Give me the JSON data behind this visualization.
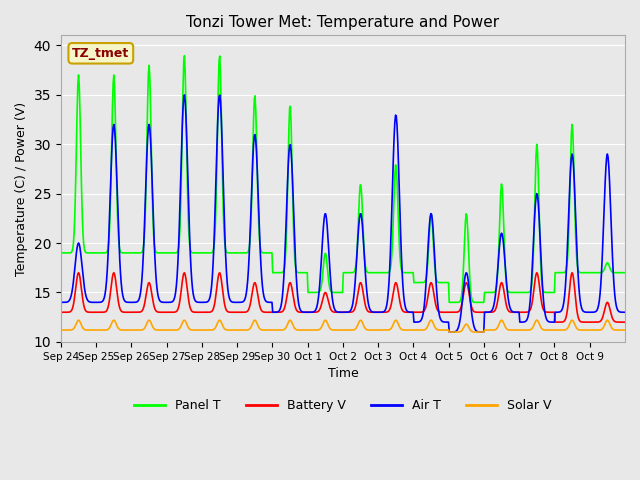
{
  "title": "Tonzi Tower Met: Temperature and Power",
  "xlabel": "Time",
  "ylabel": "Temperature (C) / Power (V)",
  "ylim": [
    10,
    41
  ],
  "yticks": [
    10,
    15,
    20,
    25,
    30,
    35,
    40
  ],
  "background_color": "#e8e8e8",
  "annotation_text": "TZ_tmet",
  "annotation_color": "#8b0000",
  "annotation_bg": "#f5f5c8",
  "annotation_border": "#c8a000",
  "legend_labels": [
    "Panel T",
    "Battery V",
    "Air T",
    "Solar V"
  ],
  "legend_colors": [
    "#00ff00",
    "#ff0000",
    "#0000ff",
    "#ffa500"
  ],
  "x_tick_labels": [
    "Sep 24",
    "Sep 25",
    "Sep 26",
    "Sep 27",
    "Sep 28",
    "Sep 29",
    "Sep 30",
    "Oct 1",
    "Oct 2",
    "Oct 3",
    "Oct 4",
    "Oct 5",
    "Oct 6",
    "Oct 7",
    "Oct 8",
    "Oct 9"
  ],
  "panel_t_peaks_day": [
    37,
    37,
    38,
    39,
    39,
    35,
    34,
    19,
    26,
    28,
    23,
    23,
    26,
    30,
    32,
    18
  ],
  "panel_t_base": [
    19,
    19,
    19,
    19,
    19,
    19,
    17,
    15,
    17,
    17,
    16,
    14,
    15,
    15,
    17,
    17
  ],
  "air_t_peaks_day": [
    20,
    32,
    32,
    35,
    35,
    31,
    30,
    23,
    23,
    33,
    23,
    17,
    21,
    25,
    29,
    29
  ],
  "air_t_base": [
    14,
    14,
    14,
    14,
    14,
    14,
    13,
    13,
    13,
    13,
    12,
    11,
    13,
    12,
    13,
    13
  ],
  "batt_v_peaks": [
    17,
    17,
    16,
    17,
    17,
    16,
    16,
    15,
    16,
    16,
    16,
    16,
    16,
    17,
    17,
    14
  ],
  "batt_v_base": [
    13,
    13,
    13,
    13,
    13,
    13,
    13,
    13,
    13,
    13,
    13,
    13,
    13,
    13,
    12,
    12
  ],
  "solar_v_peaks": [
    12.2,
    12.2,
    12.2,
    12.2,
    12.2,
    12.2,
    12.2,
    12.2,
    12.2,
    12.2,
    12.2,
    11.8,
    12.2,
    12.2,
    12.2,
    12.2
  ],
  "solar_v_base": [
    11.2,
    11.2,
    11.2,
    11.2,
    11.2,
    11.2,
    11.2,
    11.2,
    11.2,
    11.2,
    11.2,
    11.0,
    11.2,
    11.2,
    11.2,
    11.2
  ]
}
